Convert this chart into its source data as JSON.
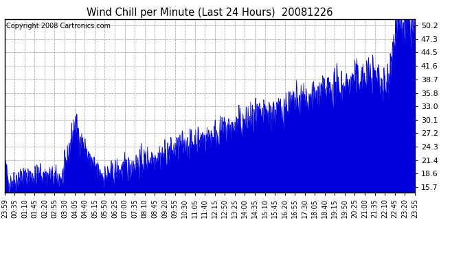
{
  "title": "Wind Chill per Minute (Last 24 Hours)  20081226",
  "copyright": "Copyright 2008 Cartronics.com",
  "line_color": "#0000dd",
  "background_color": "#ffffff",
  "plot_bg_color": "#ffffff",
  "grid_color": "#aaaaaa",
  "grid_style": "--",
  "yticks": [
    15.7,
    18.6,
    21.4,
    24.3,
    27.2,
    30.1,
    33.0,
    35.8,
    38.7,
    41.6,
    44.5,
    47.3,
    50.2
  ],
  "ymin": 14.5,
  "ymax": 51.5,
  "num_points": 1440,
  "x_tick_labels": [
    "23:59",
    "00:35",
    "01:10",
    "01:45",
    "02:20",
    "02:55",
    "03:30",
    "04:05",
    "04:40",
    "05:15",
    "05:50",
    "06:25",
    "07:00",
    "07:35",
    "08:10",
    "08:45",
    "09:20",
    "09:55",
    "10:30",
    "11:05",
    "11:40",
    "12:15",
    "12:50",
    "13:25",
    "14:00",
    "14:35",
    "15:10",
    "15:45",
    "16:20",
    "16:55",
    "17:30",
    "18:05",
    "18:40",
    "19:15",
    "19:50",
    "20:25",
    "21:00",
    "21:35",
    "22:10",
    "22:45",
    "23:20",
    "23:55"
  ],
  "seed": 42
}
